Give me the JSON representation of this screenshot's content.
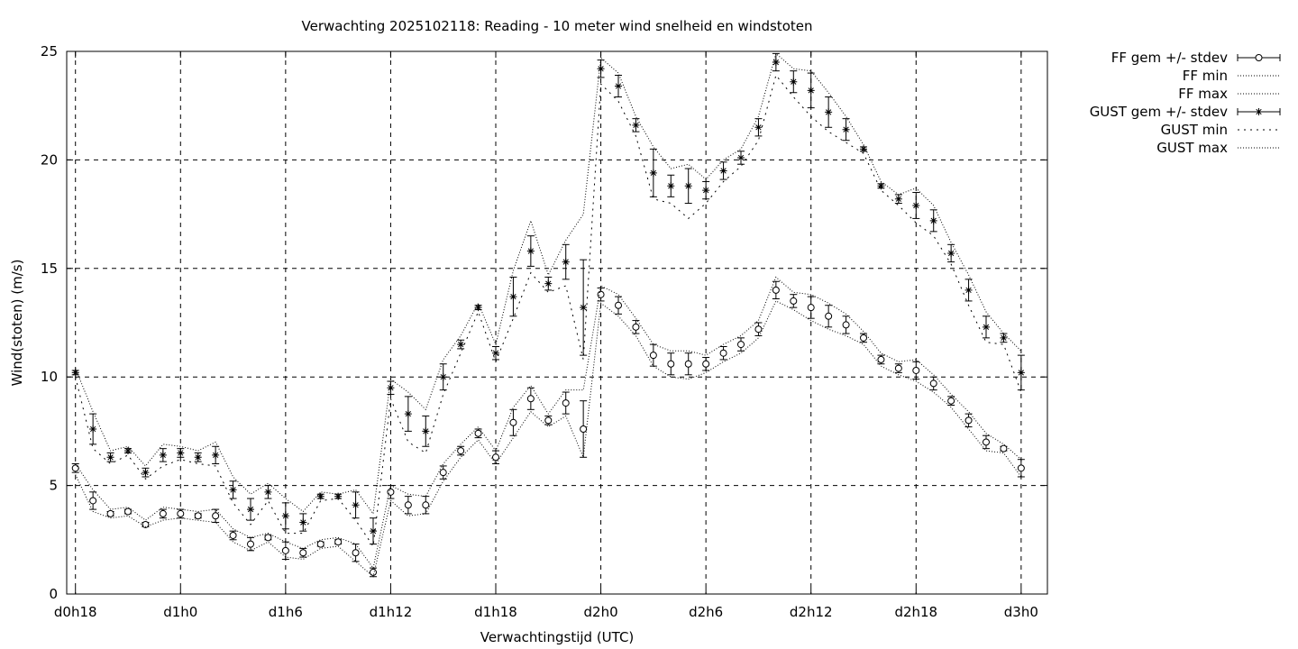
{
  "chart_data": {
    "type": "line",
    "title": "Verwachting 2025102118: Reading - 10 meter wind snelheid en windstoten",
    "xlabel": "Verwachtingstijd (UTC)",
    "ylabel": "Wind(stoten) (m/s)",
    "ylim": [
      0,
      25
    ],
    "yticks": [
      0,
      5,
      10,
      15,
      20,
      25
    ],
    "xlim": [
      -0.5,
      55.5
    ],
    "xticks": [
      0,
      6,
      12,
      18,
      24,
      30,
      36,
      42,
      48,
      54
    ],
    "xtick_labels": [
      "d0h18",
      "d1h0",
      "d1h6",
      "d1h12",
      "d1h18",
      "d2h0",
      "d2h6",
      "d2h12",
      "d2h18",
      "d3h0"
    ],
    "grid": true,
    "legend_position": "outside-top-right",
    "series": [
      {
        "name": "FF gem +/- stdev",
        "style": "errorbars-circle",
        "mean": [
          5.8,
          4.3,
          3.7,
          3.8,
          3.2,
          3.7,
          3.7,
          3.6,
          3.6,
          2.7,
          2.3,
          2.6,
          2.0,
          1.9,
          2.3,
          2.4,
          1.9,
          1.0,
          4.7,
          4.1,
          4.1,
          5.6,
          6.6,
          7.4,
          6.3,
          7.9,
          9.0,
          8.0,
          8.8,
          7.6,
          13.8,
          13.3,
          12.3,
          11.0,
          10.6,
          10.6,
          10.6,
          11.1,
          11.5,
          12.2,
          14.0,
          13.5,
          13.2,
          12.8,
          12.4,
          11.8,
          10.8,
          10.4,
          10.3,
          9.7,
          8.9,
          8.0,
          7.0,
          6.7,
          5.8
        ],
        "stdev": [
          0.2,
          0.4,
          0.1,
          0.1,
          0.1,
          0.2,
          0.2,
          0.1,
          0.3,
          0.2,
          0.3,
          0.1,
          0.4,
          0.2,
          0.1,
          0.1,
          0.4,
          0.2,
          0.3,
          0.4,
          0.4,
          0.3,
          0.2,
          0.2,
          0.3,
          0.6,
          0.5,
          0.2,
          0.5,
          1.3,
          0.3,
          0.4,
          0.3,
          0.5,
          0.5,
          0.5,
          0.3,
          0.3,
          0.3,
          0.3,
          0.4,
          0.3,
          0.5,
          0.5,
          0.4,
          0.2,
          0.2,
          0.2,
          0.4,
          0.3,
          0.2,
          0.3,
          0.3,
          0.1,
          0.4
        ]
      },
      {
        "name": "FF min",
        "style": "dotted",
        "values": [
          5.5,
          3.8,
          3.5,
          3.6,
          3.1,
          3.4,
          3.5,
          3.4,
          3.3,
          2.4,
          2.0,
          2.4,
          1.7,
          1.6,
          2.1,
          2.2,
          1.5,
          0.8,
          4.3,
          3.6,
          3.7,
          5.2,
          6.3,
          7.1,
          6.0,
          7.2,
          8.4,
          7.7,
          8.2,
          6.3,
          13.4,
          12.8,
          11.9,
          10.5,
          10.0,
          9.9,
          10.2,
          10.7,
          11.1,
          11.8,
          13.5,
          13.1,
          12.6,
          12.2,
          11.9,
          11.5,
          10.5,
          10.1,
          9.8,
          9.3,
          8.6,
          7.6,
          6.6,
          6.5,
          5.4
        ]
      },
      {
        "name": "FF max",
        "style": "dotted",
        "values": [
          6.0,
          4.8,
          3.9,
          4.0,
          3.4,
          4.0,
          3.9,
          3.8,
          3.9,
          3.0,
          2.6,
          2.8,
          2.4,
          2.1,
          2.5,
          2.6,
          2.3,
          1.2,
          5.0,
          4.6,
          4.5,
          6.0,
          6.9,
          7.7,
          6.6,
          8.6,
          9.6,
          8.3,
          9.4,
          9.4,
          14.2,
          13.8,
          12.7,
          11.5,
          11.2,
          11.2,
          11.0,
          11.5,
          11.9,
          12.6,
          14.6,
          13.9,
          13.8,
          13.4,
          12.9,
          12.1,
          11.1,
          10.7,
          10.8,
          10.1,
          9.2,
          8.4,
          7.4,
          6.9,
          6.2
        ]
      },
      {
        "name": "GUST gem +/- stdev",
        "style": "errorbars-star",
        "mean": [
          10.2,
          7.6,
          6.3,
          6.6,
          5.6,
          6.4,
          6.5,
          6.3,
          6.4,
          4.8,
          3.9,
          4.7,
          3.6,
          3.3,
          4.5,
          4.5,
          4.1,
          2.9,
          9.5,
          8.3,
          7.5,
          10.0,
          11.5,
          13.2,
          11.1,
          13.7,
          15.8,
          14.3,
          15.3,
          13.2,
          24.2,
          23.4,
          21.6,
          19.4,
          18.8,
          18.8,
          18.6,
          19.5,
          20.1,
          21.5,
          24.5,
          23.6,
          23.2,
          22.2,
          21.4,
          20.5,
          18.8,
          18.2,
          17.9,
          17.2,
          15.7,
          14.0,
          12.3,
          11.8,
          10.2
        ],
        "stdev": [
          0.1,
          0.7,
          0.2,
          0.1,
          0.2,
          0.3,
          0.2,
          0.2,
          0.4,
          0.4,
          0.5,
          0.3,
          0.6,
          0.4,
          0.1,
          0.1,
          0.6,
          0.6,
          0.3,
          0.8,
          0.7,
          0.6,
          0.2,
          0.1,
          0.3,
          0.9,
          0.7,
          0.3,
          0.8,
          2.2,
          0.4,
          0.5,
          0.3,
          1.1,
          0.5,
          0.8,
          0.4,
          0.4,
          0.3,
          0.4,
          0.4,
          0.5,
          0.8,
          0.7,
          0.5,
          0.1,
          0.1,
          0.2,
          0.6,
          0.5,
          0.4,
          0.5,
          0.5,
          0.2,
          0.8
        ]
      },
      {
        "name": "GUST min",
        "style": "dotted",
        "values": [
          10.0,
          6.7,
          6.0,
          6.4,
          5.3,
          5.9,
          6.2,
          6.0,
          5.9,
          4.2,
          3.2,
          4.3,
          2.8,
          2.8,
          4.3,
          4.4,
          3.4,
          2.2,
          9.0,
          7.0,
          6.5,
          9.2,
          11.1,
          13.0,
          10.7,
          12.7,
          14.8,
          13.9,
          14.2,
          10.8,
          23.5,
          22.7,
          21.1,
          18.2,
          18.0,
          17.3,
          18.0,
          19.0,
          19.7,
          20.9,
          23.9,
          22.9,
          22.0,
          21.3,
          20.8,
          20.3,
          18.6,
          17.9,
          17.1,
          16.5,
          15.2,
          13.3,
          11.6,
          11.5,
          9.3
        ]
      },
      {
        "name": "GUST max",
        "style": "dotted",
        "values": [
          10.4,
          8.4,
          6.6,
          6.8,
          5.9,
          6.9,
          6.8,
          6.6,
          7.0,
          5.4,
          4.6,
          5.1,
          4.4,
          3.8,
          4.7,
          4.6,
          4.8,
          3.7,
          9.9,
          9.3,
          8.5,
          10.8,
          11.9,
          13.4,
          11.5,
          14.9,
          17.2,
          14.7,
          16.3,
          17.5,
          24.7,
          24.0,
          22.0,
          20.6,
          19.6,
          19.8,
          19.1,
          20.0,
          20.5,
          22.0,
          24.9,
          24.2,
          24.1,
          23.1,
          22.0,
          20.7,
          19.0,
          18.4,
          18.7,
          17.9,
          16.2,
          14.7,
          13.0,
          12.0,
          11.2
        ]
      }
    ]
  }
}
